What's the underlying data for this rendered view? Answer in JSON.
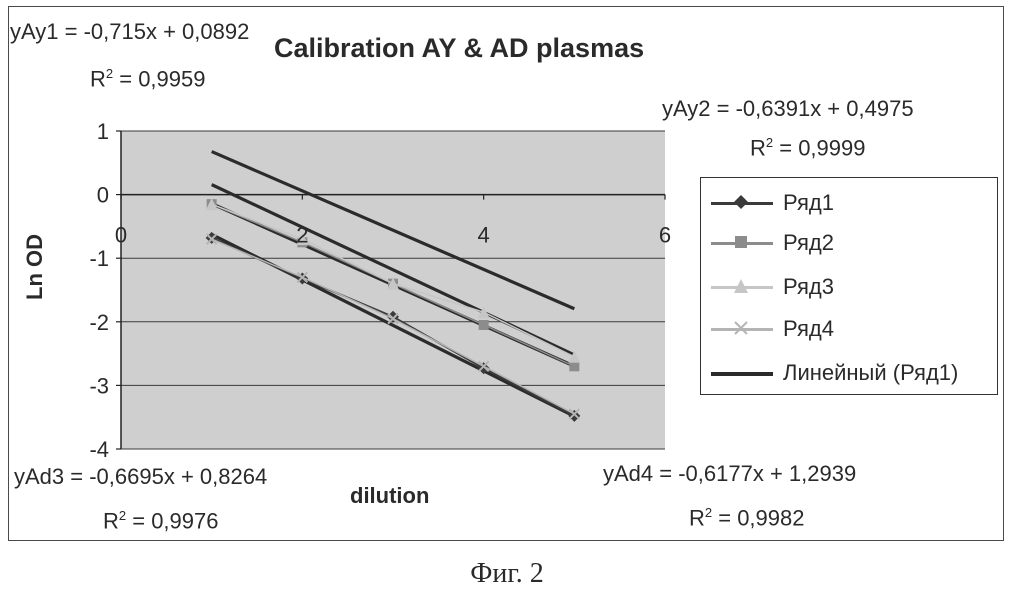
{
  "chart_data": {
    "type": "scatter",
    "title": "Calibration AY & AD plasmas",
    "xlabel": "dilution",
    "ylabel": "Ln OD",
    "xlim": [
      0,
      6
    ],
    "ylim": [
      -4,
      1
    ],
    "x_ticks": [
      "0",
      "2",
      "4",
      "6"
    ],
    "y_ticks": [
      "1",
      "0",
      "-1",
      "-2",
      "-3",
      "-4"
    ],
    "grid": "horizontal",
    "legend_position": "right",
    "series": [
      {
        "name": "Ряд1",
        "marker": "diamond",
        "color": "#3a3a3a",
        "x": [
          1,
          2,
          3,
          4,
          5
        ],
        "y": [
          -0.68,
          -1.32,
          -1.92,
          -2.73,
          -3.48
        ]
      },
      {
        "name": "Ряд2",
        "marker": "square",
        "color": "#8c8c8c",
        "x": [
          1,
          2,
          3,
          4,
          5
        ],
        "y": [
          -0.15,
          -0.75,
          -1.4,
          -2.05,
          -2.7
        ]
      },
      {
        "name": "Ряд3",
        "marker": "triangle",
        "color": "#c6c6c6",
        "x": [
          1,
          2,
          3,
          4,
          5
        ],
        "y": [
          -0.15,
          -0.7,
          -1.4,
          -1.85,
          -2.55
        ]
      },
      {
        "name": "Ряд4",
        "marker": "x",
        "color": "#b4b4b4",
        "x": [
          1,
          2,
          3,
          4,
          5
        ],
        "y": [
          -0.7,
          -1.3,
          -1.95,
          -2.7,
          -3.45
        ]
      }
    ],
    "trendlines": [
      {
        "name": "Линейный (Ряд1)",
        "slope": -0.715,
        "intercept": 0.0892,
        "x_range": [
          1,
          5
        ]
      },
      {
        "slope": -0.6391,
        "intercept": 0.4975,
        "x_range": [
          1,
          5
        ]
      },
      {
        "slope": -0.6695,
        "intercept": 0.8264,
        "x_range": [
          1,
          5
        ]
      },
      {
        "slope": -0.6177,
        "intercept": 1.2939,
        "x_range": [
          1,
          5
        ]
      }
    ],
    "legend_entries": [
      "Ряд1",
      "Ряд2",
      "Ряд3",
      "Ряд4",
      "Линейный (Ряд1)"
    ]
  },
  "annotations": {
    "ay1_eq": "yAy1 = -0,715x + 0,0892",
    "ay1_r2_prefix": "R",
    "ay1_r2_exp": "2",
    "ay1_r2_value": " = 0,9959",
    "ay2_eq": "yAy2 = -0,6391x + 0,4975",
    "ay2_r2_prefix": "R",
    "ay2_r2_exp": "2",
    "ay2_r2_value": " = 0,9999",
    "ad3_eq": "yAd3 = -0,6695x + 0,8264",
    "ad3_r2_prefix": "R",
    "ad3_r2_exp": "2",
    "ad3_r2_value": " = 0,9976",
    "ad4_eq": "yAd4 = -0,6177x + 1,2939",
    "ad4_r2_prefix": "R",
    "ad4_r2_exp": "2",
    "ad4_r2_value": " = 0,9982"
  },
  "colors": {
    "plot_background": "#cfcfcf",
    "gridline": "#3a3a3a",
    "trendline": "#2b2b2b"
  },
  "caption": "Фиг. 2"
}
